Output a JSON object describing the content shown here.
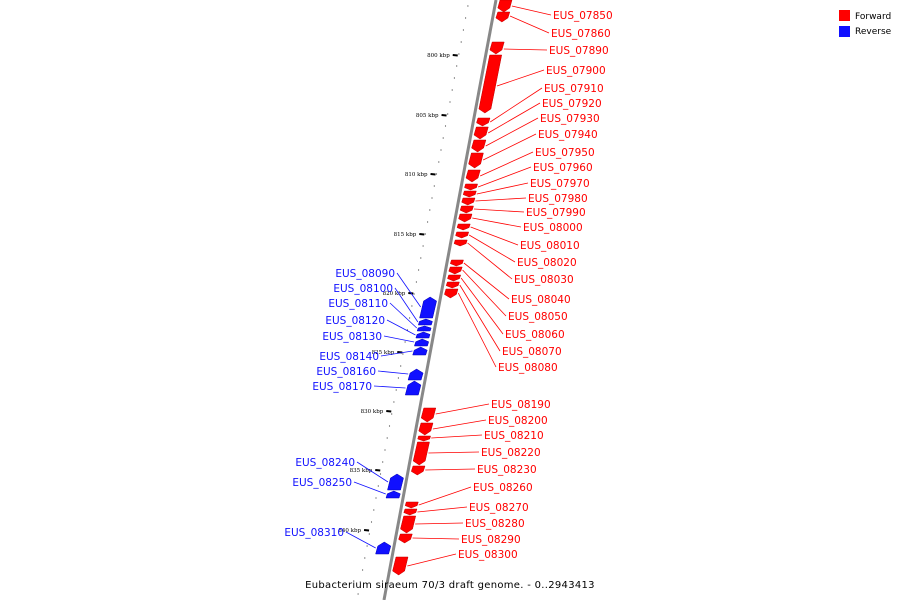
{
  "colors": {
    "forward": "#ff0000",
    "reverse": "#1010ff",
    "axis": "#888888",
    "text": "#000000"
  },
  "legend": {
    "forward": "Forward",
    "reverse": "Reverse"
  },
  "caption": "Eubacterium siraeum 70/3 draft genome. - 0..2943413",
  "ticks": [
    {
      "label": "800 kbp",
      "kbp": 800
    },
    {
      "label": "805 kbp",
      "kbp": 805
    },
    {
      "label": "810 kbp",
      "kbp": 810
    },
    {
      "label": "815 kbp",
      "kbp": 815
    },
    {
      "label": "820 kbp",
      "kbp": 820
    },
    {
      "label": "825 kbp",
      "kbp": 825
    },
    {
      "label": "830 kbp",
      "kbp": 830
    },
    {
      "label": "835 kbp",
      "kbp": 835
    },
    {
      "label": "840 kbp",
      "kbp": 840
    }
  ],
  "genes": [
    {
      "name": "EUS_07850",
      "strand": "forward"
    },
    {
      "name": "EUS_07860",
      "strand": "forward"
    },
    {
      "name": "EUS_07890",
      "strand": "forward"
    },
    {
      "name": "EUS_07900",
      "strand": "forward"
    },
    {
      "name": "EUS_07910",
      "strand": "forward"
    },
    {
      "name": "EUS_07920",
      "strand": "forward"
    },
    {
      "name": "EUS_07930",
      "strand": "forward"
    },
    {
      "name": "EUS_07940",
      "strand": "forward"
    },
    {
      "name": "EUS_07950",
      "strand": "forward"
    },
    {
      "name": "EUS_07960",
      "strand": "forward"
    },
    {
      "name": "EUS_07970",
      "strand": "forward"
    },
    {
      "name": "EUS_07980",
      "strand": "forward"
    },
    {
      "name": "EUS_07990",
      "strand": "forward"
    },
    {
      "name": "EUS_08000",
      "strand": "forward"
    },
    {
      "name": "EUS_08010",
      "strand": "forward"
    },
    {
      "name": "EUS_08020",
      "strand": "forward"
    },
    {
      "name": "EUS_08030",
      "strand": "forward"
    },
    {
      "name": "EUS_08040",
      "strand": "forward"
    },
    {
      "name": "EUS_08050",
      "strand": "forward"
    },
    {
      "name": "EUS_08060",
      "strand": "forward"
    },
    {
      "name": "EUS_08070",
      "strand": "forward"
    },
    {
      "name": "EUS_08080",
      "strand": "forward"
    },
    {
      "name": "EUS_08090",
      "strand": "reverse"
    },
    {
      "name": "EUS_08100",
      "strand": "reverse"
    },
    {
      "name": "EUS_08110",
      "strand": "reverse"
    },
    {
      "name": "EUS_08120",
      "strand": "reverse"
    },
    {
      "name": "EUS_08130",
      "strand": "reverse"
    },
    {
      "name": "EUS_08140",
      "strand": "reverse"
    },
    {
      "name": "EUS_08160",
      "strand": "reverse"
    },
    {
      "name": "EUS_08170",
      "strand": "reverse"
    },
    {
      "name": "EUS_08190",
      "strand": "forward"
    },
    {
      "name": "EUS_08200",
      "strand": "forward"
    },
    {
      "name": "EUS_08210",
      "strand": "forward"
    },
    {
      "name": "EUS_08220",
      "strand": "forward"
    },
    {
      "name": "EUS_08230",
      "strand": "forward"
    },
    {
      "name": "EUS_08240",
      "strand": "reverse"
    },
    {
      "name": "EUS_08250",
      "strand": "reverse"
    },
    {
      "name": "EUS_08260",
      "strand": "forward"
    },
    {
      "name": "EUS_08270",
      "strand": "forward"
    },
    {
      "name": "EUS_08280",
      "strand": "forward"
    },
    {
      "name": "EUS_08290",
      "strand": "forward"
    },
    {
      "name": "EUS_08300",
      "strand": "forward"
    },
    {
      "name": "EUS_08310",
      "strand": "reverse"
    }
  ]
}
